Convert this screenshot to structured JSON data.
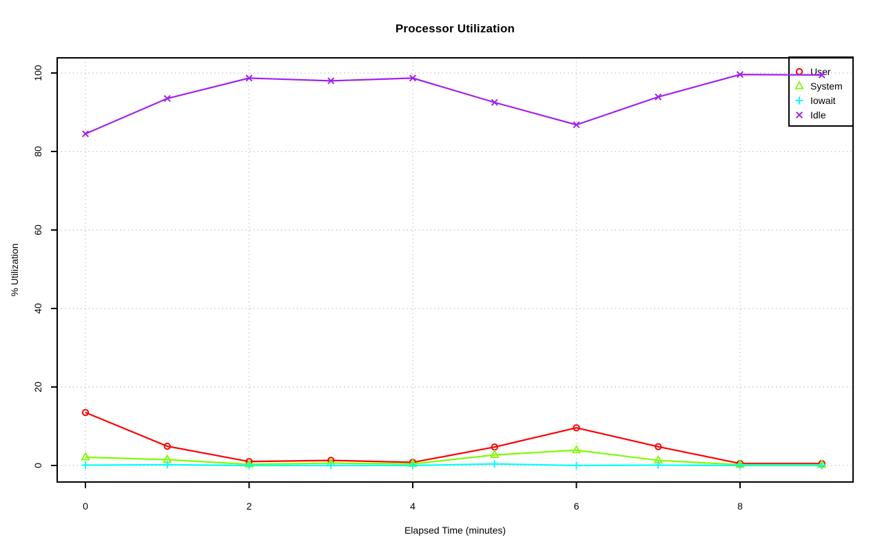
{
  "chart_data": {
    "type": "line",
    "title": "Processor Utilization",
    "xlabel": "Elapsed Time (minutes)",
    "ylabel": "% Utilization",
    "x": [
      0,
      1,
      2,
      3,
      4,
      5,
      6,
      7,
      8,
      9
    ],
    "xlim": [
      -0.36,
      9.36
    ],
    "ylim": [
      -4,
      104
    ],
    "xticks": [
      0,
      2,
      4,
      6,
      8
    ],
    "yticks": [
      0,
      20,
      40,
      60,
      80,
      100
    ],
    "grid": "dotted",
    "grid_color": "#c9c9c9",
    "axis_color": "#000000",
    "legend_position": "top-right",
    "legend_border": "#000000",
    "series": [
      {
        "name": "User",
        "color": "#ff0000",
        "marker": "circle",
        "values": [
          13.5,
          4.9,
          1.0,
          1.3,
          0.8,
          4.7,
          9.6,
          4.8,
          0.5,
          0.5
        ]
      },
      {
        "name": "System",
        "color": "#7cfc00",
        "marker": "triangle",
        "values": [
          2.1,
          1.5,
          0.3,
          0.6,
          0.4,
          2.7,
          3.9,
          1.3,
          0.2,
          0.2
        ]
      },
      {
        "name": "Iowait",
        "color": "#00ffff",
        "marker": "plus",
        "values": [
          0.1,
          0.2,
          0.0,
          0.0,
          0.0,
          0.4,
          0.0,
          0.1,
          0.0,
          0.0
        ]
      },
      {
        "name": "Idle",
        "color": "#a020f0",
        "marker": "x",
        "values": [
          84.5,
          93.5,
          98.7,
          98.0,
          98.7,
          92.5,
          86.8,
          93.9,
          99.6,
          99.5
        ]
      }
    ]
  }
}
